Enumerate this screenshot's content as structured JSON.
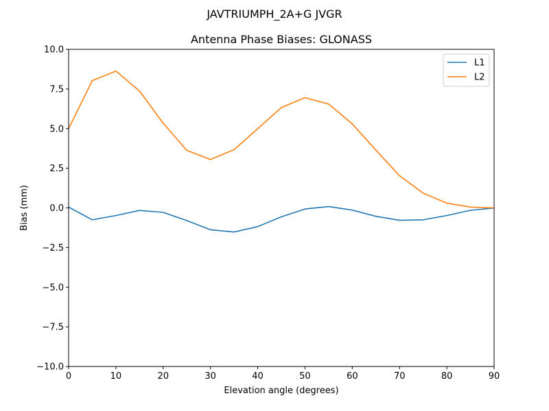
{
  "chart_data": {
    "type": "line",
    "suptitle": "JAVTRIUMPH_2A+G JVGR",
    "title": "Antenna Phase Biases: GLONASS",
    "xlabel": "Elevation angle (degrees)",
    "ylabel": "Bias (mm)",
    "xlim": [
      0,
      90
    ],
    "ylim": [
      -10,
      10
    ],
    "xticks": [
      0,
      10,
      20,
      30,
      40,
      50,
      60,
      70,
      80,
      90
    ],
    "xtick_labels": [
      "0",
      "10",
      "20",
      "30",
      "40",
      "50",
      "60",
      "70",
      "80",
      "90"
    ],
    "yticks": [
      -10,
      -7.5,
      -5,
      -2.5,
      0,
      2.5,
      5,
      7.5,
      10
    ],
    "ytick_labels": [
      "−10.0",
      "−7.5",
      "−5.0",
      "−2.5",
      "0.0",
      "2.5",
      "5.0",
      "7.5",
      "10.0"
    ],
    "grid": false,
    "legend_position": "top-right",
    "x": [
      0,
      5,
      10,
      15,
      20,
      25,
      30,
      35,
      40,
      45,
      50,
      55,
      60,
      65,
      70,
      75,
      80,
      85,
      90
    ],
    "series": [
      {
        "name": "L1",
        "color": "#1f77b4",
        "values": [
          0.05,
          -0.75,
          -0.48,
          -0.16,
          -0.28,
          -0.8,
          -1.38,
          -1.52,
          -1.18,
          -0.56,
          -0.07,
          0.08,
          -0.14,
          -0.53,
          -0.78,
          -0.75,
          -0.48,
          -0.15,
          -0.01
        ]
      },
      {
        "name": "L2",
        "color": "#ff7f0e",
        "values": [
          5.0,
          8.02,
          8.63,
          7.37,
          5.34,
          3.63,
          3.05,
          3.67,
          5.0,
          6.33,
          6.95,
          6.55,
          5.3,
          3.64,
          2.03,
          0.93,
          0.3,
          0.05,
          0.0
        ]
      }
    ]
  }
}
